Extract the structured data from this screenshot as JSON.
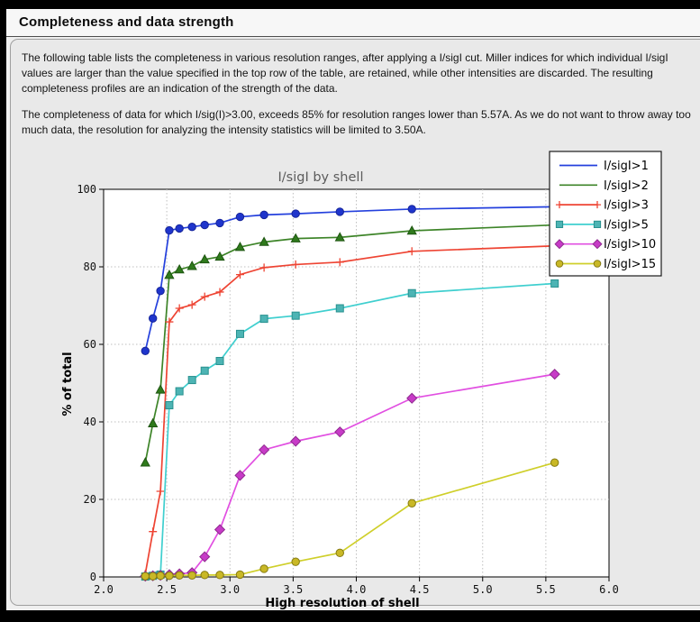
{
  "header": {
    "title": "Completeness and data strength"
  },
  "paragraphs": [
    "The following table lists the completeness in various resolution ranges, after applying a I/sigI cut. Miller indices for which individual I/sigI values are larger than the value specified in the top row of the table, are retained, while other intensities are discarded. The resulting completeness profiles are an indication of the strength of the data.",
    "The completeness of data for which I/sig(I)>3.00, exceeds  85% for resolution ranges lower than 5.57A. As we do not want to throw away too much data, the resolution for analyzing the intensity statistics will be limited to 3.50A."
  ],
  "chart_data": {
    "type": "line",
    "title": "I/sigI by shell",
    "xlabel": "High resolution of shell",
    "ylabel": "% of total",
    "xlim": [
      2.0,
      6.0
    ],
    "ylim": [
      0,
      100
    ],
    "xticks": [
      2.0,
      2.5,
      3.0,
      3.5,
      4.0,
      4.5,
      5.0,
      5.5,
      6.0
    ],
    "yticks": [
      0,
      20,
      40,
      60,
      80,
      100
    ],
    "grid": "dashed",
    "legend_position": "upper right",
    "plot_bg": "#ffffff",
    "frame_color": "#000000",
    "grid_color": "#bfbfbf",
    "x": [
      2.33,
      2.39,
      2.45,
      2.52,
      2.6,
      2.7,
      2.8,
      2.92,
      3.08,
      3.27,
      3.52,
      3.87,
      4.44,
      5.57
    ],
    "series": [
      {
        "name": "I/sigI>1",
        "marker": "circle",
        "legend_markers": false,
        "color": "#2440dd",
        "marker_fill": "#1f35cc",
        "marker_edge": "#16259a",
        "values": [
          58.3,
          66.7,
          73.8,
          89.4,
          89.9,
          90.3,
          90.8,
          91.3,
          92.9,
          93.4,
          93.7,
          94.2,
          94.9,
          95.5
        ]
      },
      {
        "name": "I/sigI>2",
        "marker": "triangle",
        "legend_markers": false,
        "color": "#3d8428",
        "marker_fill": "#2f7a1c",
        "marker_edge": "#1e5511",
        "values": [
          29.5,
          39.6,
          48.3,
          77.9,
          79.3,
          80.2,
          81.9,
          82.6,
          85.1,
          86.4,
          87.3,
          87.6,
          89.3,
          90.8
        ]
      },
      {
        "name": "I/sigI>3",
        "marker": "plus",
        "legend_markers": true,
        "color": "#ee4433",
        "marker_fill": "#ee4433",
        "marker_edge": "#ee4433",
        "values": [
          0.8,
          11.7,
          22.1,
          65.8,
          69.3,
          70.2,
          72.3,
          73.5,
          78.0,
          79.8,
          80.6,
          81.2,
          84.0,
          85.4
        ]
      },
      {
        "name": "I/sigI>5",
        "marker": "square",
        "legend_markers": true,
        "color": "#3fcfcf",
        "marker_fill": "#4db4b4",
        "marker_edge": "#28918f",
        "values": [
          0.1,
          0.3,
          0.6,
          44.3,
          47.9,
          50.8,
          53.2,
          55.7,
          62.7,
          66.6,
          67.4,
          69.3,
          73.2,
          75.7
        ]
      },
      {
        "name": "I/sigI>10",
        "marker": "diamond",
        "legend_markers": true,
        "color": "#e14fe1",
        "marker_fill": "#c73bc7",
        "marker_edge": "#8f2a8f",
        "values": [
          0.2,
          0.3,
          0.4,
          0.6,
          0.8,
          1.1,
          5.2,
          12.2,
          26.2,
          32.8,
          35.0,
          37.4,
          46.1,
          52.3
        ]
      },
      {
        "name": "I/sigI>15",
        "marker": "circle",
        "legend_markers": true,
        "color": "#cfcf2a",
        "marker_fill": "#c9b826",
        "marker_edge": "#857a12",
        "values": [
          0.2,
          0.2,
          0.3,
          0.3,
          0.4,
          0.4,
          0.5,
          0.5,
          0.6,
          2.1,
          3.9,
          6.2,
          19.0,
          29.5
        ]
      }
    ]
  }
}
